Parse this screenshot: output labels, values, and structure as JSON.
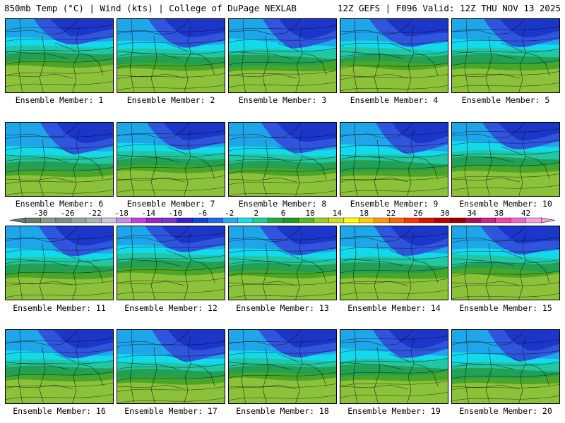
{
  "header": {
    "left": "850mb Temp (°C) | Wind (kts) | College of DuPage NEXLAB",
    "right": "12Z GEFS | F096 Valid: 12Z THU NOV 13 2025"
  },
  "member_label_prefix": "Ensemble Member: ",
  "members": [
    1,
    2,
    3,
    4,
    5,
    6,
    7,
    8,
    9,
    10,
    11,
    12,
    13,
    14,
    15,
    16,
    17,
    18,
    19,
    20
  ],
  "colorbar": {
    "ticks": [
      "-30",
      "-26",
      "-22",
      "-18",
      "-14",
      "-10",
      "-6",
      "-2",
      "2",
      "6",
      "10",
      "14",
      "18",
      "22",
      "26",
      "30",
      "34",
      "38",
      "42"
    ],
    "colors": [
      "#6c7a6c",
      "#8a9a8a",
      "#7f8c84",
      "#9aa39a",
      "#a9b4ad",
      "#c8c8d8",
      "#cc88ee",
      "#bb44dd",
      "#9922cc",
      "#7733cc",
      "#3322cc",
      "#1144dd",
      "#2266ee",
      "#22aaee",
      "#11ddee",
      "#22cc99",
      "#22aa44",
      "#229922",
      "#55bb22",
      "#99cc22",
      "#ccdd22",
      "#ffff00",
      "#ffcc00",
      "#ff9900",
      "#ff6600",
      "#ff3300",
      "#dd1100",
      "#bb0000",
      "#990000",
      "#aa1155",
      "#cc2288",
      "#ee44aa",
      "#ee66cc",
      "#f4a0e0"
    ]
  }
}
